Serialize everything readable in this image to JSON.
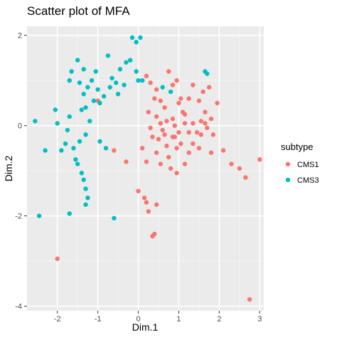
{
  "chart_data": {
    "type": "scatter",
    "title": "Scatter plot of MFA",
    "xlabel": "Dim.1",
    "ylabel": "Dim.2",
    "xlim": [
      -2.75,
      3.1
    ],
    "ylim": [
      -4.1,
      2.2
    ],
    "x_ticks": [
      -2,
      -1,
      0,
      1,
      2,
      3
    ],
    "y_ticks": [
      2,
      0,
      -2,
      -4
    ],
    "grid": true,
    "legend": {
      "title": "subtype",
      "position": "right"
    },
    "series": [
      {
        "name": "CMS1",
        "color": "#F8766D",
        "points": [
          [
            0.75,
            1.2
          ],
          [
            0.85,
            0.9
          ],
          [
            0.95,
            1.0
          ],
          [
            1.0,
            0.5
          ],
          [
            1.05,
            0.6
          ],
          [
            1.15,
            0.25
          ],
          [
            1.25,
            0.6
          ],
          [
            1.35,
            0.9
          ],
          [
            0.2,
            1.1
          ],
          [
            0.3,
            0.95
          ],
          [
            0.45,
            0.8
          ],
          [
            0.55,
            0.55
          ],
          [
            0.65,
            0.4
          ],
          [
            0.85,
            0.15
          ],
          [
            0.9,
            0.0
          ],
          [
            0.7,
            0.1
          ],
          [
            0.4,
            0.6
          ],
          [
            0.25,
            0.3
          ],
          [
            0.3,
            -0.05
          ],
          [
            0.6,
            -0.1
          ],
          [
            0.5,
            -0.3
          ],
          [
            0.45,
            -0.6
          ],
          [
            0.55,
            -0.85
          ],
          [
            0.7,
            -0.45
          ],
          [
            0.75,
            -0.7
          ],
          [
            0.85,
            -0.25
          ],
          [
            0.95,
            -0.5
          ],
          [
            1.05,
            -0.4
          ],
          [
            0.8,
            -0.95
          ],
          [
            0.95,
            -1.05
          ],
          [
            0.1,
            -0.5
          ],
          [
            0.2,
            -0.8
          ],
          [
            0.35,
            -0.25
          ],
          [
            1.15,
            -0.85
          ],
          [
            1.25,
            -0.6
          ],
          [
            1.35,
            -0.4
          ],
          [
            1.45,
            -0.15
          ],
          [
            1.55,
            0.1
          ],
          [
            1.65,
            0.3
          ],
          [
            1.7,
            -0.05
          ],
          [
            1.8,
            0.15
          ],
          [
            1.85,
            -0.2
          ],
          [
            1.5,
            0.55
          ],
          [
            1.6,
            0.75
          ],
          [
            1.75,
            0.85
          ],
          [
            1.25,
            -0.15
          ],
          [
            1.1,
            0.3
          ],
          [
            1.5,
            -0.5
          ],
          [
            1.8,
            -0.6
          ],
          [
            2.1,
            -0.55
          ],
          [
            2.3,
            -0.85
          ],
          [
            2.5,
            -0.95
          ],
          [
            2.65,
            -1.15
          ],
          [
            3.0,
            -0.75
          ],
          [
            1.95,
            0.5
          ],
          [
            1.65,
            0.05
          ],
          [
            1.55,
            -0.2
          ],
          [
            1.35,
            0.05
          ],
          [
            1.15,
            0.05
          ],
          [
            1.0,
            -0.15
          ],
          [
            0.9,
            -0.25
          ],
          [
            0.65,
            -0.2
          ],
          [
            0.55,
            0.05
          ],
          [
            0.45,
            0.2
          ],
          [
            0.15,
            -1.6
          ],
          [
            0.2,
            -1.7
          ],
          [
            0.25,
            -1.9
          ],
          [
            0.45,
            -1.75
          ],
          [
            0.4,
            -2.4
          ],
          [
            0.35,
            -2.45
          ],
          [
            0.0,
            -1.45
          ],
          [
            -0.3,
            -0.8
          ],
          [
            -0.6,
            -0.55
          ],
          [
            -1.0,
            0.55
          ],
          [
            -2.0,
            -2.95
          ],
          [
            2.75,
            -3.85
          ]
        ]
      },
      {
        "name": "CMS3",
        "color": "#00BFC4",
        "points": [
          [
            -0.15,
            1.95
          ],
          [
            -0.05,
            1.85
          ],
          [
            0.05,
            1.95
          ],
          [
            -0.3,
            1.4
          ],
          [
            -0.2,
            1.45
          ],
          [
            -0.05,
            1.2
          ],
          [
            -0.45,
            1.25
          ],
          [
            -0.55,
            0.95
          ],
          [
            -0.7,
            0.85
          ],
          [
            -0.5,
            0.7
          ],
          [
            -0.75,
            1.55
          ],
          [
            -0.65,
            1.05
          ],
          [
            -0.85,
            0.65
          ],
          [
            -0.95,
            0.5
          ],
          [
            -1.05,
            1.2
          ],
          [
            -1.15,
            1.0
          ],
          [
            -1.25,
            0.85
          ],
          [
            -1.35,
            0.7
          ],
          [
            -1.5,
            1.45
          ],
          [
            -1.65,
            1.2
          ],
          [
            -1.7,
            1.0
          ],
          [
            -1.45,
            0.95
          ],
          [
            -1.3,
            0.4
          ],
          [
            -1.4,
            0.35
          ],
          [
            -1.1,
            0.55
          ],
          [
            -1.2,
            0.1
          ],
          [
            -1.3,
            -0.2
          ],
          [
            -1.45,
            -0.35
          ],
          [
            -1.6,
            -0.5
          ],
          [
            -1.55,
            -0.75
          ],
          [
            -1.8,
            -0.4
          ],
          [
            -1.9,
            -0.55
          ],
          [
            -1.75,
            -0.1
          ],
          [
            -1.7,
            0.2
          ],
          [
            -2.0,
            0.05
          ],
          [
            -2.05,
            0.35
          ],
          [
            -2.55,
            0.1
          ],
          [
            -2.3,
            -0.55
          ],
          [
            -1.5,
            -0.85
          ],
          [
            -1.4,
            -1.05
          ],
          [
            -1.35,
            -1.2
          ],
          [
            -1.3,
            -1.4
          ],
          [
            -1.25,
            -1.6
          ],
          [
            -1.3,
            -1.75
          ],
          [
            -2.45,
            -2.0
          ],
          [
            -1.7,
            -1.95
          ],
          [
            -0.6,
            -2.05
          ],
          [
            -0.95,
            -0.35
          ],
          [
            -0.8,
            -0.5
          ],
          [
            0.1,
            1.0
          ],
          [
            0.0,
            1.0
          ],
          [
            1.7,
            1.15
          ],
          [
            1.65,
            1.2
          ],
          [
            0.8,
            0.75
          ],
          [
            0.6,
            0.85
          ],
          [
            -1.35,
            1.25
          ],
          [
            -1.0,
            0.8
          ],
          [
            -0.35,
            0.9
          ]
        ]
      }
    ]
  }
}
